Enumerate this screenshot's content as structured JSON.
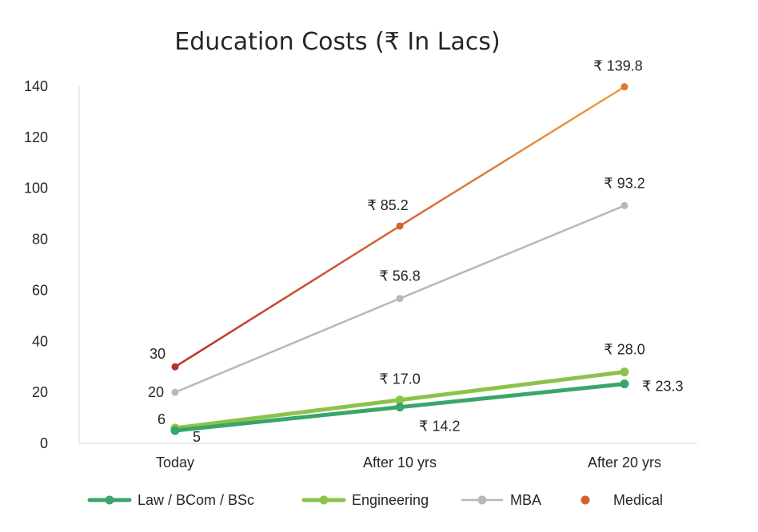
{
  "chart_data": {
    "type": "line",
    "title": "Education Costs (₹ In Lacs)",
    "xlabel": "",
    "ylabel": "",
    "categories": [
      "Today",
      "After 10 yrs",
      "After 20 yrs"
    ],
    "ylim": [
      0,
      140
    ],
    "yticks": [
      0,
      20,
      40,
      60,
      80,
      100,
      120,
      140
    ],
    "grid": false,
    "legend_position": "bottom",
    "series": [
      {
        "name": "Law / BCom / BSc",
        "values": [
          5,
          14.2,
          23.3
        ],
        "labels": [
          "5",
          "₹ 14.2",
          "₹ 23.3"
        ],
        "color": "#3aa56b"
      },
      {
        "name": "Engineering",
        "values": [
          6,
          17.0,
          28.0
        ],
        "labels": [
          "6",
          "₹ 17.0",
          "₹ 28.0"
        ],
        "color": "#8bc34a"
      },
      {
        "name": "MBA",
        "values": [
          20,
          56.8,
          93.2
        ],
        "labels": [
          "20",
          "₹ 56.8",
          "₹ 93.2"
        ],
        "color": "#b8b8b8"
      },
      {
        "name": "Medical",
        "values": [
          30,
          85.2,
          139.8
        ],
        "labels": [
          "30",
          "₹ 85.2",
          "₹ 139.8"
        ],
        "color": "#c8582a"
      }
    ]
  }
}
